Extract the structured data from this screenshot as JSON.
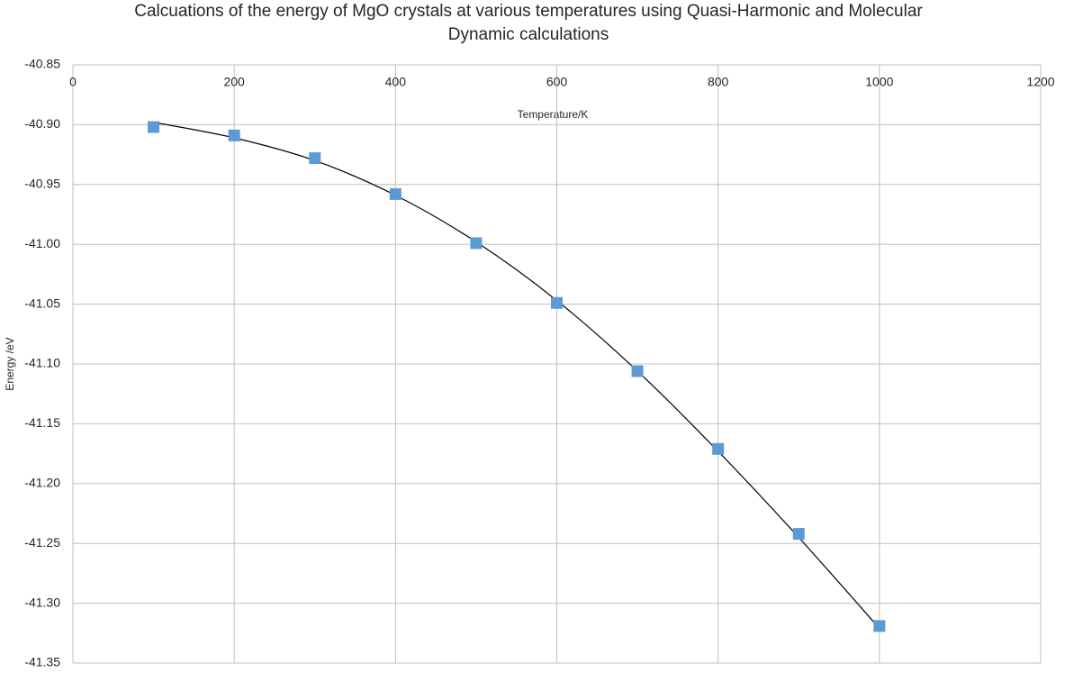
{
  "chart_data": {
    "type": "scatter",
    "title": [
      "Calcuations of the energy of MgO crystals at various temperatures using Quasi-Harmonic and Molecular",
      "Dynamic calculations"
    ],
    "x_label": "Temperature/K",
    "y_label": "Energy /eV",
    "x": [
      100,
      200,
      300,
      400,
      500,
      600,
      700,
      800,
      900,
      1000
    ],
    "series": [
      {
        "color": "#5b9bd5",
        "values": [
          -40.902,
          -40.909,
          -40.928,
          -40.958,
          -40.999,
          -41.049,
          -41.106,
          -41.171,
          -41.242,
          -41.319
        ]
      }
    ],
    "trendline": {
      "color": "#000000",
      "values": [
        -40.898,
        -40.911,
        -40.93,
        -40.959,
        -40.998,
        -41.047,
        -41.106,
        -41.173,
        -41.245,
        -41.321
      ]
    },
    "xlim": [
      0,
      1200
    ],
    "xticks": [
      0,
      200,
      400,
      600,
      800,
      1000,
      1200
    ],
    "ylim": [
      -41.35,
      -40.85
    ],
    "yticks": [
      -40.85,
      {
        "value": -40.9,
        "label": "-40.90"
      },
      -40.95,
      {
        "value": -41.0,
        "label": "-41.00"
      },
      -41.05,
      {
        "value": -41.1,
        "label": "-41.10"
      },
      -41.15,
      {
        "value": -41.2,
        "label": "-41.20"
      },
      -41.25,
      {
        "value": -41.3,
        "label": "-41.30"
      },
      -41.35
    ],
    "grid": true
  }
}
